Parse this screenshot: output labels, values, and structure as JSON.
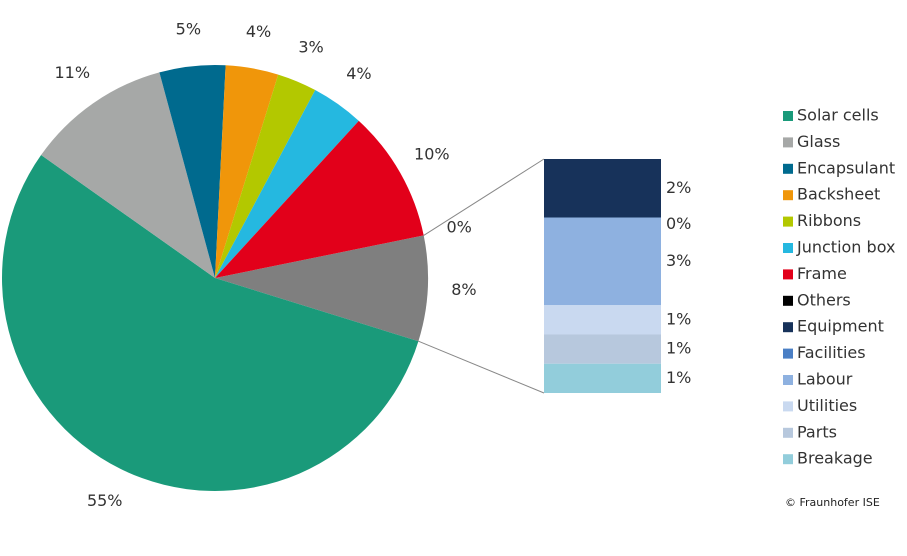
{
  "chart_data": {
    "type": "pie-of-bar",
    "pie": {
      "categories": [
        "Solar cells",
        "Glass",
        "Encapsulant",
        "Backsheet",
        "Ribbons",
        "Junction box",
        "Frame",
        "Others"
      ],
      "values": [
        55,
        11,
        5,
        4,
        3,
        4,
        10,
        0
      ],
      "value_labels": [
        "55%",
        "11%",
        "5%",
        "4%",
        "3%",
        "4%",
        "10%",
        "0%"
      ],
      "colors": [
        "#1a9a7a",
        "#a6a8a7",
        "#006a8e",
        "#f0960a",
        "#b3c800",
        "#25b8e0",
        "#e2001a",
        "#000000"
      ]
    },
    "remainder": {
      "value": 8,
      "value_label": "8%",
      "color": "#7f7f7f"
    },
    "bar": {
      "categories": [
        "Equipment",
        "Facilities",
        "Labour",
        "Utilities",
        "Parts",
        "Breakage"
      ],
      "values": [
        2,
        0,
        3,
        1,
        1,
        1
      ],
      "value_labels": [
        "2%",
        "0%",
        "3%",
        "1%",
        "1%",
        "1%"
      ],
      "colors": [
        "#17325a",
        "#4a7fc5",
        "#8eb1e0",
        "#c9d9f0",
        "#b7c8dd",
        "#92cddb"
      ]
    },
    "credit": "© Fraunhofer ISE"
  }
}
